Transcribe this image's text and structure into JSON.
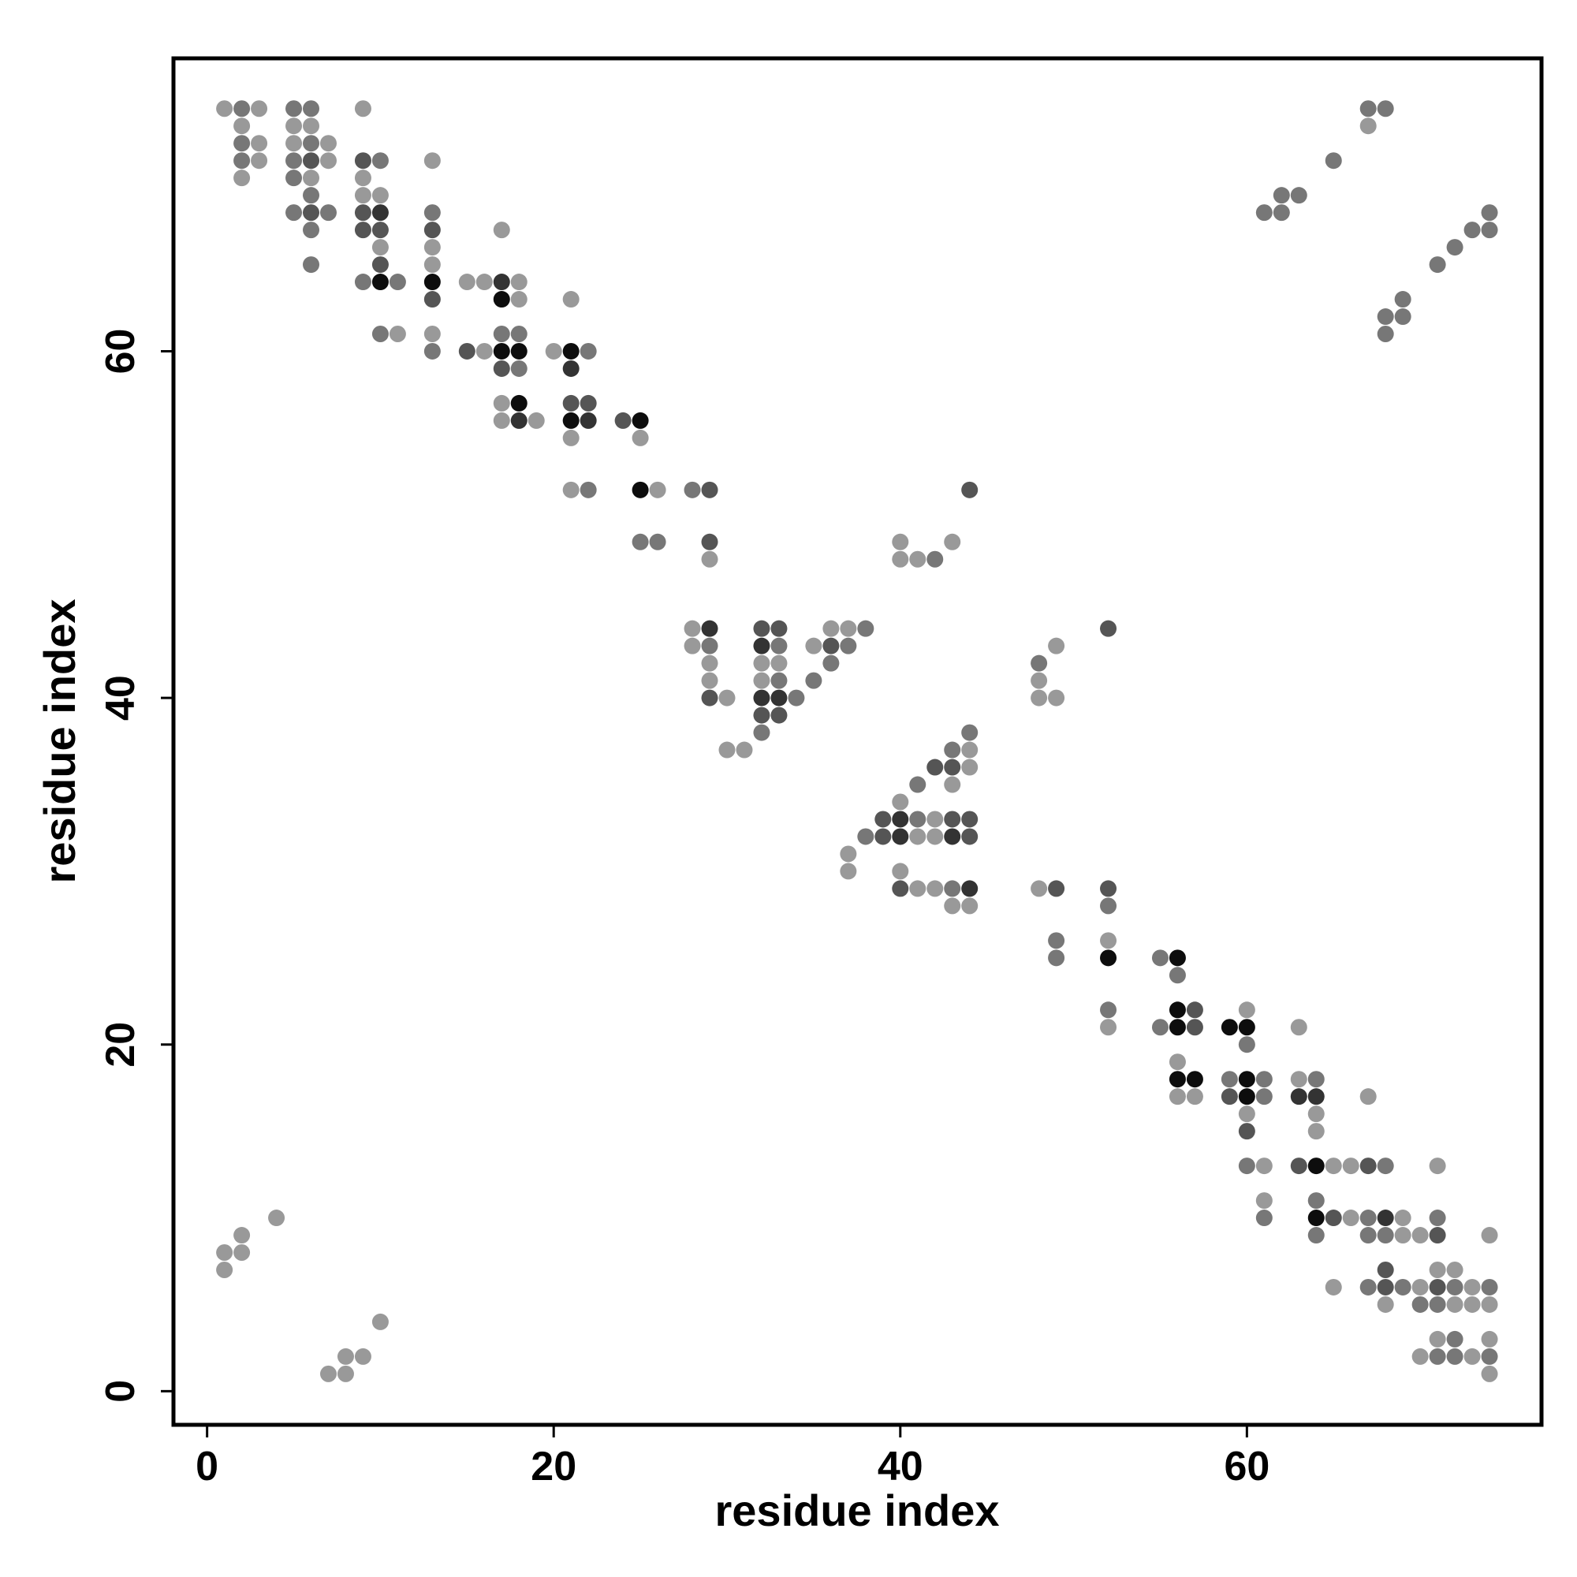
{
  "chart_data": {
    "type": "scatter",
    "x_label": "residue index",
    "y_label": "residue index",
    "xlim": [
      -1.94,
      77
    ],
    "ylim": [
      -1.94,
      76.9
    ],
    "xticks": [
      0,
      20,
      40,
      60
    ],
    "yticks": [
      0,
      20,
      40,
      60
    ],
    "x": [
      1,
      2,
      3,
      5,
      6,
      9,
      67,
      68,
      2,
      5,
      6,
      67,
      2,
      3,
      5,
      6,
      7,
      2,
      3,
      5,
      6,
      7,
      9,
      10,
      13,
      65,
      2,
      5,
      6,
      9,
      6,
      9,
      10,
      62,
      63,
      5,
      6,
      7,
      9,
      10,
      13,
      61,
      62,
      74,
      6,
      9,
      10,
      13,
      17,
      73,
      74,
      10,
      13,
      72,
      6,
      10,
      13,
      71,
      9,
      10,
      11,
      13,
      15,
      16,
      17,
      18,
      13,
      17,
      18,
      21,
      69,
      68,
      69,
      10,
      11,
      13,
      17,
      18,
      68,
      13,
      15,
      16,
      17,
      18,
      20,
      21,
      22,
      17,
      18,
      21,
      17,
      18,
      21,
      22,
      17,
      18,
      19,
      21,
      22,
      24,
      25,
      21,
      25,
      21,
      22,
      25,
      26,
      28,
      29,
      44,
      25,
      26,
      29,
      40,
      43,
      29,
      40,
      41,
      42,
      28,
      29,
      32,
      33,
      36,
      37,
      38,
      52,
      28,
      29,
      32,
      33,
      35,
      36,
      37,
      49,
      29,
      32,
      33,
      36,
      48,
      29,
      32,
      33,
      35,
      48,
      29,
      30,
      32,
      33,
      34,
      48,
      49,
      32,
      33,
      32,
      44,
      30,
      31,
      43,
      44,
      42,
      43,
      44,
      41,
      43,
      40,
      39,
      40,
      41,
      42,
      43,
      44,
      38,
      39,
      40,
      41,
      42,
      43,
      44,
      37,
      37,
      40,
      40,
      41,
      42,
      43,
      44,
      48,
      49,
      52,
      43,
      44,
      52,
      49,
      52,
      49,
      52,
      55,
      56,
      56,
      52,
      56,
      57,
      60,
      52,
      55,
      56,
      57,
      59,
      60,
      63,
      60,
      56,
      56,
      57,
      59,
      60,
      61,
      63,
      64,
      56,
      57,
      59,
      60,
      61,
      63,
      64,
      67,
      60,
      64,
      60,
      64,
      60,
      61,
      63,
      64,
      65,
      66,
      67,
      68,
      71,
      61,
      64,
      4,
      61,
      64,
      65,
      66,
      67,
      68,
      69,
      71,
      2,
      64,
      67,
      68,
      69,
      70,
      71,
      74,
      1,
      2,
      1,
      68,
      71,
      72,
      65,
      67,
      68,
      69,
      70,
      71,
      72,
      73,
      74,
      68,
      70,
      71,
      72,
      73,
      74,
      10,
      71,
      72,
      74,
      8,
      9,
      70,
      71,
      72,
      73,
      74,
      7,
      8,
      74
    ],
    "y": [
      74,
      74,
      74,
      74,
      74,
      74,
      74,
      74,
      73,
      73,
      73,
      73,
      72,
      72,
      72,
      72,
      72,
      71,
      71,
      71,
      71,
      71,
      71,
      71,
      71,
      71,
      70,
      70,
      70,
      70,
      69,
      69,
      69,
      69,
      69,
      68,
      68,
      68,
      68,
      68,
      68,
      68,
      68,
      68,
      67,
      67,
      67,
      67,
      67,
      67,
      67,
      66,
      66,
      66,
      65,
      65,
      65,
      65,
      64,
      64,
      64,
      64,
      64,
      64,
      64,
      64,
      63,
      63,
      63,
      63,
      63,
      62,
      62,
      61,
      61,
      61,
      61,
      61,
      61,
      60,
      60,
      60,
      60,
      60,
      60,
      60,
      60,
      59,
      59,
      59,
      57,
      57,
      57,
      57,
      56,
      56,
      56,
      56,
      56,
      56,
      56,
      55,
      55,
      52,
      52,
      52,
      52,
      52,
      52,
      52,
      49,
      49,
      49,
      49,
      49,
      48,
      48,
      48,
      48,
      44,
      44,
      44,
      44,
      44,
      44,
      44,
      44,
      43,
      43,
      43,
      43,
      43,
      43,
      43,
      43,
      42,
      42,
      42,
      42,
      42,
      41,
      41,
      41,
      41,
      41,
      40,
      40,
      40,
      40,
      40,
      40,
      40,
      39,
      39,
      38,
      38,
      37,
      37,
      37,
      37,
      36,
      36,
      36,
      35,
      35,
      34,
      33,
      33,
      33,
      33,
      33,
      33,
      32,
      32,
      32,
      32,
      32,
      32,
      32,
      31,
      30,
      30,
      29,
      29,
      29,
      29,
      29,
      29,
      29,
      29,
      28,
      28,
      28,
      26,
      26,
      25,
      25,
      25,
      25,
      24,
      22,
      22,
      22,
      22,
      21,
      21,
      21,
      21,
      21,
      21,
      21,
      20,
      19,
      18,
      18,
      18,
      18,
      18,
      18,
      18,
      17,
      17,
      17,
      17,
      17,
      17,
      17,
      17,
      16,
      16,
      15,
      15,
      13,
      13,
      13,
      13,
      13,
      13,
      13,
      13,
      13,
      11,
      11,
      10,
      10,
      10,
      10,
      10,
      10,
      10,
      10,
      10,
      9,
      9,
      9,
      9,
      9,
      9,
      9,
      9,
      8,
      8,
      7,
      7,
      7,
      7,
      6,
      6,
      6,
      6,
      6,
      6,
      6,
      6,
      6,
      5,
      5,
      5,
      5,
      5,
      5,
      4,
      3,
      3,
      3,
      2,
      2,
      2,
      2,
      2,
      2,
      2,
      1,
      1,
      1
    ],
    "colors": [
      "#999999",
      "#777777",
      "#999999",
      "#777777",
      "#777777",
      "#999999",
      "#777777",
      "#777777",
      "#999999",
      "#999999",
      "#999999",
      "#999999",
      "#777777",
      "#999999",
      "#999999",
      "#777777",
      "#999999",
      "#777777",
      "#999999",
      "#777777",
      "#555555",
      "#999999",
      "#555555",
      "#777777",
      "#999999",
      "#777777",
      "#999999",
      "#777777",
      "#999999",
      "#999999",
      "#777777",
      "#999999",
      "#999999",
      "#777777",
      "#777777",
      "#777777",
      "#555555",
      "#777777",
      "#555555",
      "#333333",
      "#777777",
      "#777777",
      "#777777",
      "#777777",
      "#777777",
      "#555555",
      "#555555",
      "#555555",
      "#999999",
      "#777777",
      "#777777",
      "#999999",
      "#999999",
      "#777777",
      "#777777",
      "#555555",
      "#999999",
      "#777777",
      "#777777",
      "#0d0d0d",
      "#777777",
      "#0d0d0d",
      "#999999",
      "#999999",
      "#333333",
      "#999999",
      "#555555",
      "#0d0d0d",
      "#999999",
      "#999999",
      "#777777",
      "#777777",
      "#777777",
      "#777777",
      "#999999",
      "#999999",
      "#777777",
      "#777777",
      "#777777",
      "#777777",
      "#555555",
      "#999999",
      "#0d0d0d",
      "#0d0d0d",
      "#999999",
      "#0d0d0d",
      "#777777",
      "#555555",
      "#777777",
      "#333333",
      "#999999",
      "#0d0d0d",
      "#555555",
      "#555555",
      "#999999",
      "#333333",
      "#999999",
      "#0d0d0d",
      "#333333",
      "#555555",
      "#0d0d0d",
      "#999999",
      "#999999",
      "#999999",
      "#777777",
      "#0d0d0d",
      "#999999",
      "#777777",
      "#555555",
      "#555555",
      "#777777",
      "#777777",
      "#555555",
      "#999999",
      "#999999",
      "#999999",
      "#999999",
      "#999999",
      "#777777",
      "#999999",
      "#333333",
      "#555555",
      "#555555",
      "#999999",
      "#999999",
      "#777777",
      "#555555",
      "#999999",
      "#777777",
      "#333333",
      "#777777",
      "#999999",
      "#555555",
      "#777777",
      "#999999",
      "#999999",
      "#999999",
      "#999999",
      "#777777",
      "#777777",
      "#999999",
      "#999999",
      "#777777",
      "#777777",
      "#999999",
      "#555555",
      "#999999",
      "#333333",
      "#333333",
      "#777777",
      "#999999",
      "#999999",
      "#555555",
      "#555555",
      "#777777",
      "#777777",
      "#999999",
      "#999999",
      "#777777",
      "#999999",
      "#555555",
      "#555555",
      "#999999",
      "#777777",
      "#999999",
      "#999999",
      "#555555",
      "#333333",
      "#777777",
      "#999999",
      "#555555",
      "#555555",
      "#777777",
      "#555555",
      "#333333",
      "#999999",
      "#999999",
      "#333333",
      "#555555",
      "#999999",
      "#999999",
      "#999999",
      "#555555",
      "#999999",
      "#999999",
      "#777777",
      "#333333",
      "#999999",
      "#555555",
      "#555555",
      "#999999",
      "#999999",
      "#777777",
      "#777777",
      "#999999",
      "#777777",
      "#0d0d0d",
      "#777777",
      "#0d0d0d",
      "#777777",
      "#777777",
      "#0d0d0d",
      "#555555",
      "#999999",
      "#999999",
      "#777777",
      "#0d0d0d",
      "#555555",
      "#0d0d0d",
      "#0d0d0d",
      "#999999",
      "#777777",
      "#999999",
      "#0d0d0d",
      "#0d0d0d",
      "#777777",
      "#0d0d0d",
      "#777777",
      "#999999",
      "#777777",
      "#999999",
      "#999999",
      "#555555",
      "#0d0d0d",
      "#777777",
      "#333333",
      "#333333",
      "#999999",
      "#999999",
      "#999999",
      "#555555",
      "#999999",
      "#777777",
      "#999999",
      "#555555",
      "#0d0d0d",
      "#999999",
      "#999999",
      "#555555",
      "#777777",
      "#999999",
      "#999999",
      "#777777",
      "#999999",
      "#777777",
      "#0d0d0d",
      "#555555",
      "#999999",
      "#777777",
      "#333333",
      "#999999",
      "#777777",
      "#999999",
      "#777777",
      "#777777",
      "#777777",
      "#999999",
      "#999999",
      "#555555",
      "#999999",
      "#999999",
      "#999999",
      "#999999",
      "#555555",
      "#999999",
      "#999999",
      "#999999",
      "#777777",
      "#555555",
      "#777777",
      "#999999",
      "#555555",
      "#777777",
      "#999999",
      "#777777",
      "#999999",
      "#777777",
      "#777777",
      "#999999",
      "#999999",
      "#999999",
      "#999999",
      "#999999",
      "#777777",
      "#999999",
      "#999999",
      "#999999",
      "#999999",
      "#777777",
      "#777777",
      "#999999",
      "#777777",
      "#999999",
      "#999999",
      "#999999"
    ]
  }
}
